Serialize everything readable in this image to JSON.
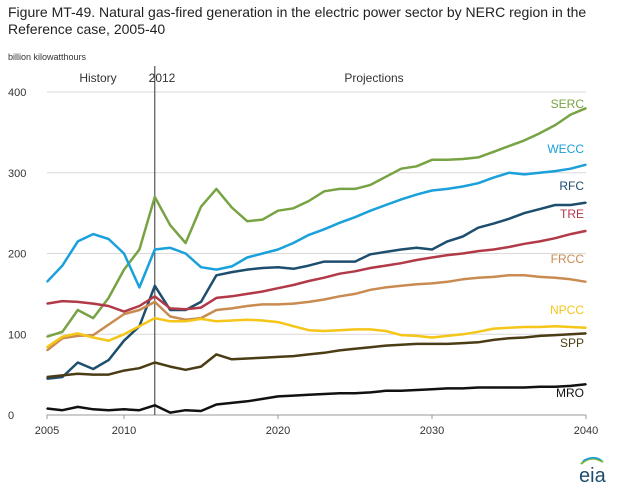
{
  "figure": {
    "title": "Figure MT-49. Natural gas-fired generation in the electric power sector by NERC region in the Reference case, 2005-40",
    "unit": "billion kilowatthours",
    "logo_text": "eia"
  },
  "chart_data": {
    "type": "line",
    "title": "Figure MT-49. Natural gas-fired generation in the electric power sector by NERC region in the Reference case, 2005-40",
    "ylabel": "billion kilowatthours",
    "xlabel": "",
    "xlim": [
      2005,
      2040
    ],
    "ylim": [
      0,
      400
    ],
    "xticks": [
      2005,
      2010,
      2020,
      2030,
      2040
    ],
    "yticks": [
      0,
      100,
      200,
      300,
      400
    ],
    "grid": "horizontal",
    "annotations": {
      "history": "History",
      "divider": "2012",
      "projections": "Projections",
      "divider_year": 2012
    },
    "x": [
      2005,
      2006,
      2007,
      2008,
      2009,
      2010,
      2011,
      2012,
      2013,
      2014,
      2015,
      2016,
      2017,
      2018,
      2019,
      2020,
      2021,
      2022,
      2023,
      2024,
      2025,
      2026,
      2027,
      2028,
      2029,
      2030,
      2031,
      2032,
      2033,
      2034,
      2035,
      2036,
      2037,
      2038,
      2039,
      2040
    ],
    "series": [
      {
        "name": "SERC",
        "color": "#77A344",
        "values": [
          97,
          103,
          130,
          120,
          145,
          180,
          205,
          270,
          235,
          213,
          258,
          280,
          257,
          240,
          242,
          253,
          256,
          265,
          277,
          280,
          280,
          285,
          295,
          305,
          308,
          316,
          316,
          317,
          319,
          326,
          333,
          340,
          349,
          359,
          372,
          380
        ]
      },
      {
        "name": "WECC",
        "color": "#1AA0DB",
        "values": [
          165,
          185,
          215,
          224,
          218,
          200,
          158,
          205,
          207,
          200,
          183,
          180,
          184,
          195,
          200,
          205,
          213,
          223,
          230,
          238,
          245,
          253,
          260,
          267,
          273,
          278,
          280,
          283,
          287,
          294,
          300,
          298,
          300,
          302,
          305,
          310
        ]
      },
      {
        "name": "RFC",
        "color": "#1E4E6E",
        "values": [
          45,
          47,
          65,
          57,
          68,
          92,
          110,
          160,
          130,
          130,
          140,
          173,
          177,
          180,
          182,
          183,
          181,
          185,
          190,
          190,
          190,
          199,
          202,
          205,
          207,
          205,
          215,
          221,
          232,
          237,
          243,
          250,
          255,
          260,
          260,
          263
        ]
      },
      {
        "name": "TRE",
        "color": "#B23A48",
        "values": [
          138,
          141,
          140,
          138,
          135,
          128,
          135,
          147,
          132,
          131,
          133,
          145,
          147,
          150,
          153,
          157,
          161,
          166,
          170,
          175,
          178,
          182,
          185,
          188,
          192,
          195,
          198,
          200,
          203,
          205,
          208,
          212,
          215,
          219,
          224,
          228
        ]
      },
      {
        "name": "FRCC",
        "color": "#C98B50",
        "values": [
          80,
          95,
          98,
          99,
          112,
          125,
          130,
          140,
          122,
          118,
          120,
          130,
          132,
          135,
          137,
          137,
          138,
          140,
          143,
          147,
          150,
          155,
          158,
          160,
          162,
          163,
          165,
          168,
          170,
          171,
          173,
          173,
          171,
          170,
          168,
          165
        ]
      },
      {
        "name": "NPCC",
        "color": "#F5C518",
        "values": [
          84,
          97,
          101,
          96,
          92,
          100,
          110,
          120,
          116,
          116,
          119,
          116,
          117,
          118,
          117,
          115,
          110,
          105,
          104,
          105,
          106,
          106,
          104,
          99,
          98,
          96,
          98,
          100,
          103,
          107,
          108,
          109,
          109,
          110,
          109,
          108
        ]
      },
      {
        "name": "SPP",
        "color": "#4A3C14",
        "values": [
          47,
          49,
          51,
          50,
          50,
          55,
          58,
          65,
          60,
          56,
          60,
          75,
          69,
          70,
          71,
          72,
          73,
          75,
          77,
          80,
          82,
          84,
          86,
          87,
          88,
          88,
          88,
          89,
          90,
          93,
          95,
          96,
          98,
          99,
          100,
          101
        ]
      },
      {
        "name": "MRO",
        "color": "#111111",
        "values": [
          8,
          6,
          10,
          7,
          6,
          7,
          6,
          12,
          3,
          6,
          5,
          13,
          15,
          17,
          20,
          23,
          24,
          25,
          26,
          27,
          27,
          28,
          30,
          30,
          31,
          32,
          33,
          33,
          34,
          34,
          34,
          34,
          35,
          35,
          36,
          38
        ]
      }
    ]
  }
}
